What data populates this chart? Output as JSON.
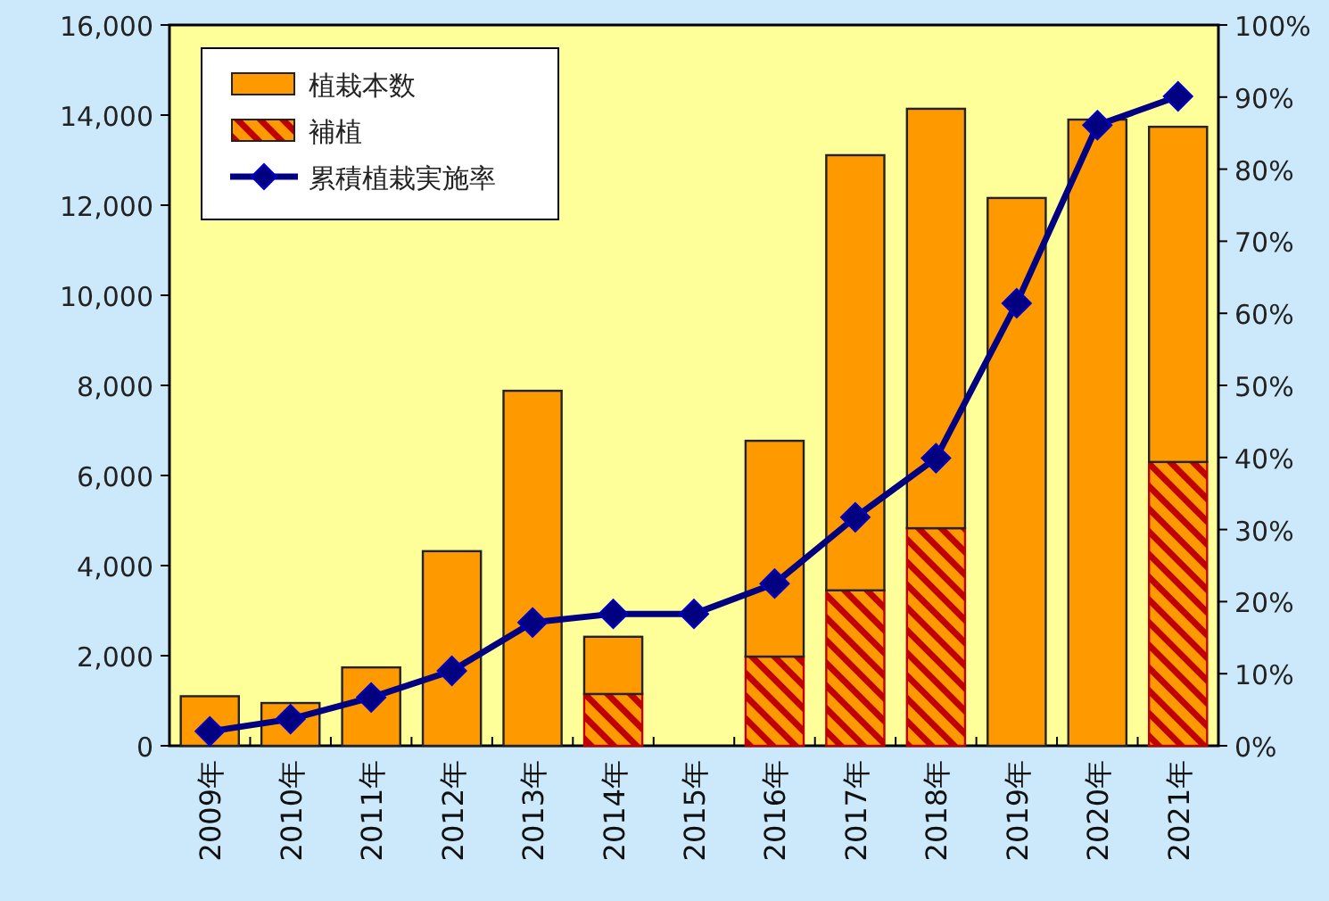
{
  "chart_data": {
    "type": "bar",
    "stacked": true,
    "categories": [
      "2009年",
      "2010年",
      "2011年",
      "2012年",
      "2013年",
      "2014年",
      "2015年",
      "2016年",
      "2017年",
      "2018年",
      "2019年",
      "2020年",
      "2021年"
    ],
    "series": [
      {
        "name": "補植",
        "color": "#c00000",
        "values": [
          null,
          null,
          null,
          null,
          null,
          1150,
          null,
          1980,
          3450,
          4830,
          null,
          null,
          6300
        ]
      },
      {
        "name": "植栽本数",
        "color": "#ff9900",
        "values": [
          1100,
          950,
          1740,
          4320,
          7880,
          1270,
          0,
          4790,
          9660,
          9310,
          12160,
          13900,
          7440
        ]
      },
      {
        "name": "累積植栽実施率",
        "type": "line",
        "axis": "y2",
        "color": "#000080",
        "marker": "diamond",
        "values": [
          2,
          3.7,
          6.7,
          10.4,
          17.1,
          18.3,
          18.3,
          22.5,
          31.7,
          39.9,
          61.4,
          86.1,
          90.1
        ]
      }
    ],
    "ylim": [
      0,
      16000
    ],
    "yticks": [
      0,
      {
        "value": 2000,
        "label": "2,000"
      },
      {
        "value": 4000,
        "label": "4,000"
      },
      {
        "value": 6000,
        "label": "6,000"
      },
      {
        "value": 8000,
        "label": "8,000"
      },
      {
        "value": 10000,
        "label": "10,000"
      },
      {
        "value": 12000,
        "label": "12,000"
      },
      {
        "value": 14000,
        "label": "14,000"
      },
      {
        "value": 16000,
        "label": "16,000"
      }
    ],
    "y2lim": [
      0,
      100
    ],
    "y2ticks": [
      {
        "value": 0,
        "label": "0%"
      },
      {
        "value": 10,
        "label": "10%"
      },
      {
        "value": 20,
        "label": "20%"
      },
      {
        "value": 30,
        "label": "30%"
      },
      {
        "value": 40,
        "label": "40%"
      },
      {
        "value": 50,
        "label": "50%"
      },
      {
        "value": 60,
        "label": "60%"
      },
      {
        "value": 70,
        "label": "70%"
      },
      {
        "value": 80,
        "label": "80%"
      },
      {
        "value": 90,
        "label": "90%"
      },
      {
        "value": 100,
        "label": "100%"
      }
    ],
    "legend": "top left",
    "grid": false
  }
}
